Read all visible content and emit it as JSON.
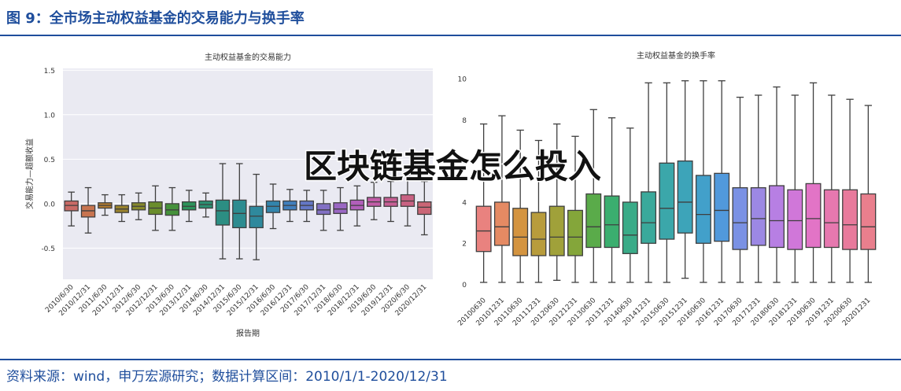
{
  "header": {
    "title": "图 9：全市场主动权益基金的交易能力与换手率"
  },
  "chart_data": [
    {
      "type": "box",
      "title": "主动权益基金的交易能力",
      "ylabel": "交易能力—超额收益",
      "xlabel": "报告期",
      "categories": [
        "2010/6/30",
        "2010/12/31",
        "2011/6/30",
        "2011/12/31",
        "2012/6/30",
        "2012/12/31",
        "2013/6/30",
        "2013/12/31",
        "2014/6/30",
        "2014/12/31",
        "2015/6/30",
        "2015/12/31",
        "2016/6/30",
        "2016/12/31",
        "2017/6/30",
        "2017/12/31",
        "2018/6/30",
        "2018/12/31",
        "2019/6/30",
        "2019/12/31",
        "2020/6/30",
        "2020/12/31"
      ],
      "ylim": [
        -0.85,
        1.52
      ],
      "yticks": [
        -0.5,
        {
          "value": 0,
          "label": "0.0"
        },
        0.5,
        {
          "value": 1,
          "label": "1.0"
        },
        1.5
      ],
      "grid": true,
      "colors": [
        "#c96a66",
        "#c8744f",
        "#b47c2f",
        "#9a832c",
        "#86882c",
        "#6a8d2c",
        "#45913b",
        "#2c935b",
        "#2c9072",
        "#2c8e83",
        "#2d8c90",
        "#2f899d",
        "#3385ac",
        "#417fbd",
        "#6477c5",
        "#8270c4",
        "#9a67c3",
        "#b15fba",
        "#c25ca8",
        "#c65f94",
        "#c96283",
        "#ca6676"
      ],
      "boxes": [
        {
          "whislo": -0.25,
          "q1": -0.08,
          "med": -0.02,
          "q3": 0.03,
          "whishi": 0.13
        },
        {
          "whislo": -0.33,
          "q1": -0.15,
          "med": -0.08,
          "q3": -0.02,
          "whishi": 0.18
        },
        {
          "whislo": -0.13,
          "q1": -0.05,
          "med": -0.02,
          "q3": 0.01,
          "whishi": 0.1
        },
        {
          "whislo": -0.2,
          "q1": -0.1,
          "med": -0.06,
          "q3": -0.02,
          "whishi": 0.1
        },
        {
          "whislo": -0.18,
          "q1": -0.07,
          "med": -0.03,
          "q3": 0.01,
          "whishi": 0.12
        },
        {
          "whislo": -0.3,
          "q1": -0.12,
          "med": -0.05,
          "q3": 0.02,
          "whishi": 0.2
        },
        {
          "whislo": -0.3,
          "q1": -0.13,
          "med": -0.07,
          "q3": 0.0,
          "whishi": 0.18
        },
        {
          "whislo": -0.2,
          "q1": -0.07,
          "med": -0.03,
          "q3": 0.02,
          "whishi": 0.15
        },
        {
          "whislo": -0.15,
          "q1": -0.05,
          "med": -0.01,
          "q3": 0.03,
          "whishi": 0.12
        },
        {
          "whislo": -0.62,
          "q1": -0.24,
          "med": -0.08,
          "q3": 0.04,
          "whishi": 0.45
        },
        {
          "whislo": -0.62,
          "q1": -0.27,
          "med": -0.11,
          "q3": 0.04,
          "whishi": 0.45
        },
        {
          "whislo": -0.63,
          "q1": -0.27,
          "med": -0.14,
          "q3": -0.03,
          "whishi": 0.33
        },
        {
          "whislo": -0.28,
          "q1": -0.1,
          "med": -0.03,
          "q3": 0.03,
          "whishi": 0.22
        },
        {
          "whislo": -0.2,
          "q1": -0.07,
          "med": -0.02,
          "q3": 0.03,
          "whishi": 0.16
        },
        {
          "whislo": -0.2,
          "q1": -0.07,
          "med": -0.02,
          "q3": 0.03,
          "whishi": 0.15
        },
        {
          "whislo": -0.3,
          "q1": -0.12,
          "med": -0.07,
          "q3": 0.0,
          "whishi": 0.15
        },
        {
          "whislo": -0.3,
          "q1": -0.11,
          "med": -0.06,
          "q3": 0.01,
          "whishi": 0.18
        },
        {
          "whislo": -0.25,
          "q1": -0.07,
          "med": -0.02,
          "q3": 0.04,
          "whishi": 0.2
        },
        {
          "whislo": -0.18,
          "q1": -0.03,
          "med": 0.02,
          "q3": 0.07,
          "whishi": 0.24
        },
        {
          "whislo": -0.2,
          "q1": -0.03,
          "med": 0.02,
          "q3": 0.07,
          "whishi": 0.25
        },
        {
          "whislo": -0.25,
          "q1": -0.03,
          "med": 0.03,
          "q3": 0.1,
          "whishi": 0.32
        },
        {
          "whislo": -0.35,
          "q1": -0.12,
          "med": -0.04,
          "q3": 0.02,
          "whishi": 0.25
        }
      ]
    },
    {
      "type": "box",
      "title": "主动权益基金的换手率",
      "categories": [
        "20100630",
        "20101231",
        "20110630",
        "20111231",
        "20120630",
        "20121231",
        "20130630",
        "20131231",
        "20140630",
        "20141231",
        "20150630",
        "20151231",
        "20160630",
        "20161231",
        "20170630",
        "20171231",
        "20180630",
        "20181231",
        "20190630",
        "20191231",
        "20200630",
        "20201231"
      ],
      "ylim": [
        -0.4,
        10.5
      ],
      "yticks": [
        0,
        2,
        4,
        6,
        8,
        10
      ],
      "grid": false,
      "colors": [
        "#e9827f",
        "#e58a63",
        "#d49440",
        "#b89c3c",
        "#a0a13a",
        "#84a63a",
        "#5aab4a",
        "#3bae6f",
        "#3aab88",
        "#3aa99b",
        "#3ba7aa",
        "#3da4b9",
        "#42a0ca",
        "#5199dc",
        "#7a91e4",
        "#9c88e4",
        "#b77fe3",
        "#d077d9",
        "#e274c6",
        "#e678af",
        "#e87a9c",
        "#e97f8d"
      ],
      "boxes": [
        {
          "whislo": 0.1,
          "q1": 1.6,
          "med": 2.6,
          "q3": 3.8,
          "whishi": 7.8
        },
        {
          "whislo": 0.1,
          "q1": 1.9,
          "med": 2.8,
          "q3": 4.0,
          "whishi": 8.2
        },
        {
          "whislo": 0.1,
          "q1": 1.4,
          "med": 2.3,
          "q3": 3.7,
          "whishi": 7.5
        },
        {
          "whislo": 0.1,
          "q1": 1.4,
          "med": 2.2,
          "q3": 3.5,
          "whishi": 7.0
        },
        {
          "whislo": 0.2,
          "q1": 1.4,
          "med": 2.3,
          "q3": 3.8,
          "whishi": 7.8
        },
        {
          "whislo": 0.1,
          "q1": 1.4,
          "med": 2.3,
          "q3": 3.6,
          "whishi": 7.2
        },
        {
          "whislo": 0.1,
          "q1": 1.8,
          "med": 2.8,
          "q3": 4.4,
          "whishi": 8.5
        },
        {
          "whislo": 0.1,
          "q1": 1.8,
          "med": 2.9,
          "q3": 4.3,
          "whishi": 8.1
        },
        {
          "whislo": 0.1,
          "q1": 1.5,
          "med": 2.4,
          "q3": 4.0,
          "whishi": 7.6
        },
        {
          "whislo": 0.1,
          "q1": 2.0,
          "med": 3.0,
          "q3": 4.5,
          "whishi": 9.8
        },
        {
          "whislo": 0.1,
          "q1": 2.2,
          "med": 3.7,
          "q3": 5.9,
          "whishi": 9.8
        },
        {
          "whislo": 0.3,
          "q1": 2.5,
          "med": 4.0,
          "q3": 6.0,
          "whishi": 9.9
        },
        {
          "whislo": 0.1,
          "q1": 2.0,
          "med": 3.4,
          "q3": 5.3,
          "whishi": 9.9
        },
        {
          "whislo": 0.1,
          "q1": 2.1,
          "med": 3.6,
          "q3": 5.4,
          "whishi": 9.9
        },
        {
          "whislo": 0.1,
          "q1": 1.7,
          "med": 3.0,
          "q3": 4.7,
          "whishi": 9.1
        },
        {
          "whislo": 0.1,
          "q1": 1.9,
          "med": 3.2,
          "q3": 4.7,
          "whishi": 9.2
        },
        {
          "whislo": 0.1,
          "q1": 1.8,
          "med": 3.1,
          "q3": 4.8,
          "whishi": 9.6
        },
        {
          "whislo": 0.1,
          "q1": 1.7,
          "med": 3.1,
          "q3": 4.6,
          "whishi": 9.2
        },
        {
          "whislo": 0.1,
          "q1": 1.8,
          "med": 3.2,
          "q3": 4.9,
          "whishi": 9.8
        },
        {
          "whislo": 0.1,
          "q1": 1.8,
          "med": 3.0,
          "q3": 4.6,
          "whishi": 9.2
        },
        {
          "whislo": 0.1,
          "q1": 1.7,
          "med": 2.9,
          "q3": 4.6,
          "whishi": 9.0
        },
        {
          "whislo": 0.1,
          "q1": 1.7,
          "med": 2.8,
          "q3": 4.4,
          "whishi": 8.7
        }
      ]
    }
  ],
  "watermark": "区块链基金怎么投入",
  "footer": {
    "source": "资料来源：wind，申万宏源研究；数据计算区间：2010/1/1-2020/12/31"
  }
}
